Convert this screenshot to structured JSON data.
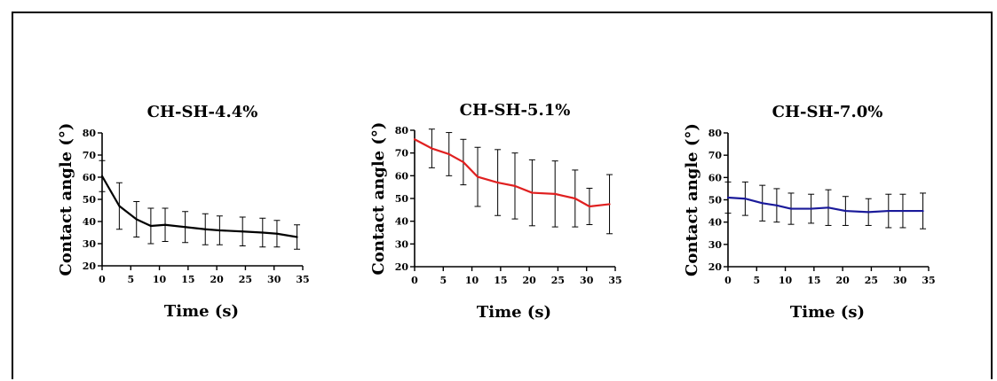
{
  "chart_data": [
    {
      "type": "line",
      "title": "CH-SH-4.4%",
      "xlabel": "Time (s)",
      "ylabel": "Contact angle (°)",
      "xlim": [
        0,
        35
      ],
      "ylim": [
        20,
        80
      ],
      "xticks": [
        0,
        5,
        10,
        15,
        20,
        25,
        30,
        35
      ],
      "yticks": [
        20,
        30,
        40,
        50,
        60,
        70,
        80
      ],
      "color": "#000000",
      "series": [
        {
          "x": [
            0,
            3,
            6,
            8.5,
            11,
            14.5,
            18,
            20.5,
            24.5,
            28,
            30.5,
            34
          ],
          "y": [
            60.5,
            47,
            41,
            38,
            38.5,
            37.5,
            36.5,
            36,
            35.5,
            35,
            34.5,
            33
          ],
          "err": [
            7,
            10.5,
            8,
            8,
            7.5,
            7,
            7,
            6.5,
            6.5,
            6.5,
            6,
            5.5
          ]
        }
      ]
    },
    {
      "type": "line",
      "title": "CH-SH-5.1%",
      "xlabel": "Time (s)",
      "ylabel": "Contact angle (°)",
      "xlim": [
        0,
        35
      ],
      "ylim": [
        20,
        80
      ],
      "xticks": [
        0,
        5,
        10,
        15,
        20,
        25,
        30,
        35
      ],
      "yticks": [
        20,
        30,
        40,
        50,
        60,
        70,
        80
      ],
      "color": "#e02020",
      "series": [
        {
          "x": [
            0,
            3,
            6,
            8.5,
            11,
            14.5,
            17.5,
            20.5,
            24.5,
            28,
            30.5,
            34
          ],
          "y": [
            76,
            72,
            69.5,
            66,
            59.5,
            57,
            55.5,
            52.5,
            52,
            50,
            46.5,
            47.5
          ],
          "err": [
            0,
            8.5,
            9.5,
            10,
            13,
            14.5,
            14.5,
            14.5,
            14.5,
            12.5,
            8,
            13
          ]
        }
      ]
    },
    {
      "type": "line",
      "title": "CH-SH-7.0%",
      "xlabel": "Time (s)",
      "ylabel": "Contact angle (°)",
      "xlim": [
        0,
        35
      ],
      "ylim": [
        20,
        80
      ],
      "xticks": [
        0,
        5,
        10,
        15,
        20,
        25,
        30,
        35
      ],
      "yticks": [
        20,
        30,
        40,
        50,
        60,
        70,
        80
      ],
      "color": "#1a1a9a",
      "series": [
        {
          "x": [
            0,
            3,
            6,
            8.5,
            11,
            14.5,
            17.5,
            20.5,
            24.5,
            28,
            30.5,
            34
          ],
          "y": [
            51,
            50.5,
            48.5,
            47.5,
            46,
            46,
            46.5,
            45,
            44.5,
            45,
            45,
            45
          ],
          "err": [
            7,
            7.5,
            8,
            7.5,
            7,
            6.5,
            8,
            6.5,
            6,
            7.5,
            7.5,
            8
          ]
        }
      ]
    }
  ]
}
